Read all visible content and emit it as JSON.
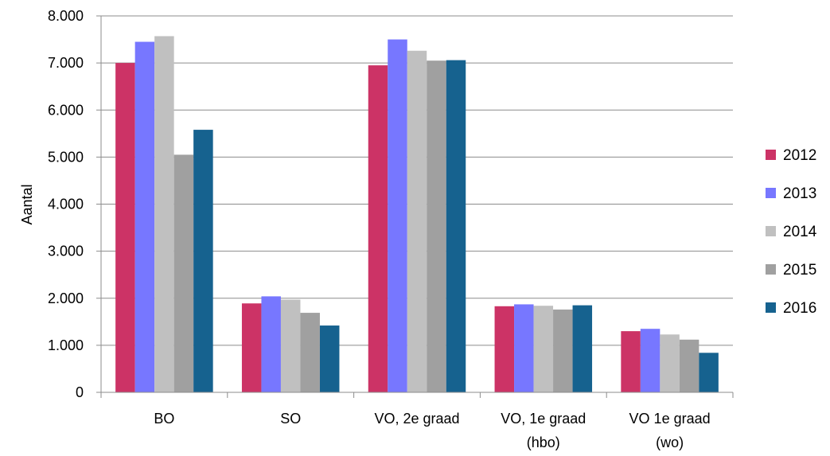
{
  "chart_data": {
    "type": "bar",
    "title": "",
    "xlabel": "",
    "ylabel": "Aantal",
    "ylim": [
      0,
      8000
    ],
    "y_ticks": [
      0,
      1000,
      2000,
      3000,
      4000,
      5000,
      6000,
      7000,
      8000
    ],
    "y_tick_labels": [
      "0",
      "1.000",
      "2.000",
      "3.000",
      "4.000",
      "5.000",
      "6.000",
      "7.000",
      "8.000"
    ],
    "grid": true,
    "legend_position": "right",
    "categories": [
      [
        "BO"
      ],
      [
        "SO"
      ],
      [
        "VO, 2e graad"
      ],
      [
        "VO, 1e graad",
        "(hbo)"
      ],
      [
        "VO 1e graad",
        "(wo)"
      ]
    ],
    "series": [
      {
        "name": "2012",
        "color": "#cc3366",
        "values": [
          7000,
          1890,
          6950,
          1830,
          1300
        ]
      },
      {
        "name": "2013",
        "color": "#7777ff",
        "values": [
          7450,
          2040,
          7500,
          1870,
          1350
        ]
      },
      {
        "name": "2014",
        "color": "#c0c0c0",
        "values": [
          7570,
          1970,
          7260,
          1840,
          1230
        ]
      },
      {
        "name": "2015",
        "color": "#a0a0a0",
        "values": [
          5050,
          1690,
          7050,
          1760,
          1120
        ]
      },
      {
        "name": "2016",
        "color": "#16628f",
        "values": [
          5580,
          1420,
          7060,
          1850,
          840
        ]
      }
    ]
  }
}
